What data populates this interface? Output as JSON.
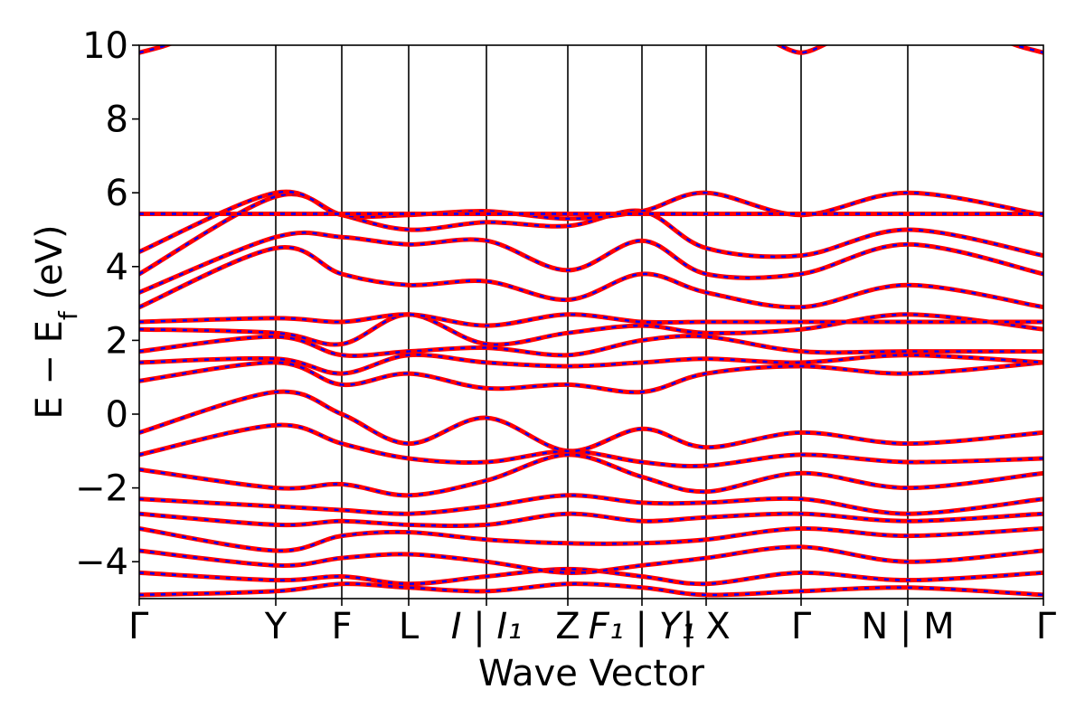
{
  "chart_data": {
    "type": "line",
    "title": "",
    "xlabel": "Wave Vector",
    "ylabel": "E − E_f (eV)",
    "ylabel_parts": {
      "main": "E − E",
      "sub": "f",
      "unit": " (eV)"
    },
    "ylim": [
      -5,
      10
    ],
    "yticks": [
      -4,
      -2,
      0,
      2,
      4,
      6,
      8,
      10
    ],
    "ytick_labels": [
      "−4",
      "−2",
      "0",
      "2",
      "4",
      "6",
      "8",
      "10"
    ],
    "xlim": [
      0,
      1.0
    ],
    "high_symmetry_points": [
      {
        "x": 0.0,
        "label": "Γ",
        "italic": false,
        "divider": false
      },
      {
        "x": 0.151,
        "label": "Y",
        "italic": false,
        "divider": true
      },
      {
        "x": 0.224,
        "label": "F",
        "italic": false,
        "divider": true
      },
      {
        "x": 0.298,
        "label": "L",
        "italic": false,
        "divider": true
      },
      {
        "x": 0.384,
        "label": "I | I₁",
        "italic": true,
        "divider": true
      },
      {
        "x": 0.474,
        "label": "Z",
        "italic": false,
        "divider": true
      },
      {
        "x": 0.556,
        "label": "F₁ | Y₁",
        "italic": true,
        "divider": true
      },
      {
        "x": 0.627,
        "label": "| X",
        "italic": false,
        "divider": true
      },
      {
        "x": 0.732,
        "label": "Γ",
        "italic": false,
        "divider": true
      },
      {
        "x": 0.85,
        "label": "N | M",
        "italic": false,
        "divider": true
      },
      {
        "x": 1.0,
        "label": "Γ",
        "italic": false,
        "divider": false
      }
    ],
    "series_style": {
      "primary_color": "#ff0000",
      "overlay_color": "#0000ff",
      "overlay_dashed": true
    },
    "bands": [
      {
        "x": [
          0,
          0.151,
          0.224,
          0.298,
          0.384,
          0.474,
          0.556,
          0.627,
          0.732,
          0.85,
          1.0
        ],
        "y": [
          -4.9,
          -4.8,
          -4.6,
          -4.7,
          -4.8,
          -4.6,
          -4.7,
          -4.9,
          -4.8,
          -4.7,
          -4.9
        ]
      },
      {
        "x": [
          0,
          0.151,
          0.224,
          0.298,
          0.384,
          0.474,
          0.556,
          0.627,
          0.732,
          0.85,
          1.0
        ],
        "y": [
          -4.3,
          -4.5,
          -4.4,
          -4.6,
          -4.4,
          -4.2,
          -4.4,
          -4.6,
          -4.3,
          -4.5,
          -4.3
        ]
      },
      {
        "x": [
          0,
          0.151,
          0.224,
          0.298,
          0.384,
          0.474,
          0.556,
          0.627,
          0.732,
          0.85,
          1.0
        ],
        "y": [
          -3.7,
          -4.1,
          -3.9,
          -3.8,
          -4.0,
          -4.3,
          -4.1,
          -3.9,
          -3.6,
          -4.0,
          -3.7
        ]
      },
      {
        "x": [
          0,
          0.151,
          0.224,
          0.298,
          0.384,
          0.474,
          0.556,
          0.627,
          0.732,
          0.85,
          1.0
        ],
        "y": [
          -3.1,
          -3.7,
          -3.3,
          -3.2,
          -3.4,
          -3.5,
          -3.5,
          -3.4,
          -3.1,
          -3.3,
          -3.1
        ]
      },
      {
        "x": [
          0,
          0.151,
          0.224,
          0.298,
          0.384,
          0.474,
          0.556,
          0.627,
          0.732,
          0.85,
          1.0
        ],
        "y": [
          -2.7,
          -3.0,
          -2.9,
          -3.0,
          -3.0,
          -2.7,
          -2.9,
          -2.8,
          -2.7,
          -2.9,
          -2.7
        ]
      },
      {
        "x": [
          0,
          0.151,
          0.224,
          0.298,
          0.384,
          0.474,
          0.556,
          0.627,
          0.732,
          0.85,
          1.0
        ],
        "y": [
          -2.3,
          -2.5,
          -2.6,
          -2.7,
          -2.5,
          -2.2,
          -2.4,
          -2.4,
          -2.3,
          -2.7,
          -2.3
        ]
      },
      {
        "x": [
          0,
          0.151,
          0.224,
          0.298,
          0.384,
          0.474,
          0.556,
          0.627,
          0.732,
          0.85,
          1.0
        ],
        "y": [
          -1.5,
          -2.0,
          -1.9,
          -2.2,
          -1.8,
          -1.1,
          -1.7,
          -2.1,
          -1.6,
          -2.0,
          -1.6
        ]
      },
      {
        "x": [
          0,
          0.151,
          0.224,
          0.298,
          0.384,
          0.474,
          0.556,
          0.627,
          0.732,
          0.85,
          1.0
        ],
        "y": [
          -1.1,
          -0.3,
          -0.8,
          -1.2,
          -1.3,
          -1.0,
          -1.3,
          -1.4,
          -1.1,
          -1.3,
          -1.2
        ]
      },
      {
        "x": [
          0,
          0.151,
          0.224,
          0.298,
          0.384,
          0.474,
          0.556,
          0.627,
          0.732,
          0.85,
          1.0
        ],
        "y": [
          -0.5,
          0.6,
          0.0,
          -0.8,
          -0.1,
          -1.0,
          -0.4,
          -0.9,
          -0.5,
          -0.8,
          -0.5
        ]
      },
      {
        "x": [
          0,
          0.151,
          0.224,
          0.298,
          0.384,
          0.474,
          0.556,
          0.627,
          0.732,
          0.85,
          1.0
        ],
        "y": [
          0.9,
          1.4,
          0.8,
          1.1,
          0.7,
          0.8,
          0.6,
          1.1,
          1.3,
          1.1,
          1.4
        ]
      },
      {
        "x": [
          0,
          0.151,
          0.224,
          0.298,
          0.384,
          0.474,
          0.556,
          0.627,
          0.732,
          0.85,
          1.0
        ],
        "y": [
          1.4,
          1.5,
          1.1,
          1.6,
          1.4,
          1.3,
          1.4,
          1.5,
          1.4,
          1.6,
          1.4
        ]
      },
      {
        "x": [
          0,
          0.151,
          0.224,
          0.298,
          0.384,
          0.474,
          0.556,
          0.627,
          0.732,
          0.85,
          1.0
        ],
        "y": [
          1.7,
          2.1,
          1.6,
          1.7,
          1.8,
          1.6,
          2.0,
          2.1,
          1.7,
          1.7,
          1.7
        ]
      },
      {
        "x": [
          0,
          0.151,
          0.224,
          0.298,
          0.384,
          0.474,
          0.556,
          0.627,
          0.732,
          0.85,
          1.0
        ],
        "y": [
          2.3,
          2.2,
          1.9,
          2.7,
          1.9,
          2.2,
          2.4,
          2.2,
          2.3,
          2.7,
          2.3
        ]
      },
      {
        "x": [
          0,
          0.151,
          0.224,
          0.298,
          0.384,
          0.474,
          0.556,
          0.627,
          0.732,
          0.85,
          1.0
        ],
        "y": [
          2.5,
          2.6,
          2.5,
          2.7,
          2.4,
          2.7,
          2.5,
          2.5,
          2.5,
          2.5,
          2.5
        ]
      },
      {
        "x": [
          0,
          0.151,
          0.224,
          0.298,
          0.384,
          0.474,
          0.556,
          0.627,
          0.732,
          0.85,
          1.0
        ],
        "y": [
          2.9,
          4.5,
          3.8,
          3.5,
          3.6,
          3.1,
          3.8,
          3.3,
          2.9,
          3.5,
          2.9
        ]
      },
      {
        "x": [
          0,
          0.151,
          0.224,
          0.298,
          0.384,
          0.474,
          0.556,
          0.627,
          0.732,
          0.85,
          1.0
        ],
        "y": [
          3.3,
          4.8,
          4.8,
          4.6,
          4.7,
          3.9,
          4.7,
          3.8,
          3.8,
          4.6,
          3.8
        ]
      },
      {
        "x": [
          0,
          0.151,
          0.224,
          0.298,
          0.384,
          0.474,
          0.556,
          0.627,
          0.732,
          0.85,
          1.0
        ],
        "y": [
          3.8,
          5.9,
          5.4,
          5.0,
          5.2,
          5.1,
          5.5,
          4.5,
          4.3,
          5.0,
          4.3
        ]
      },
      {
        "x": [
          0,
          0.151,
          0.224,
          0.298,
          0.384,
          0.474,
          0.556,
          0.627,
          0.732,
          0.85,
          1.0
        ],
        "y": [
          4.4,
          6.0,
          5.4,
          5.4,
          5.5,
          5.3,
          5.5,
          6.0,
          5.4,
          6.0,
          5.4
        ]
      },
      {
        "x": [
          0,
          0.151,
          0.224,
          0.298,
          0.384,
          0.474,
          0.556,
          0.627,
          0.732,
          0.85,
          1.0
        ],
        "y": [
          5.43,
          5.43,
          5.43,
          5.43,
          5.43,
          5.43,
          5.43,
          5.43,
          5.43,
          5.43,
          5.43
        ]
      },
      {
        "x": [
          0,
          0.03,
          0.06
        ],
        "y": [
          9.8,
          10.0,
          10.3
        ]
      },
      {
        "x": [
          0.7,
          0.732,
          0.765
        ],
        "y": [
          10.1,
          9.8,
          10.1
        ]
      },
      {
        "x": [
          0.94,
          0.97,
          1.0
        ],
        "y": [
          10.3,
          10.0,
          9.8
        ]
      }
    ]
  }
}
